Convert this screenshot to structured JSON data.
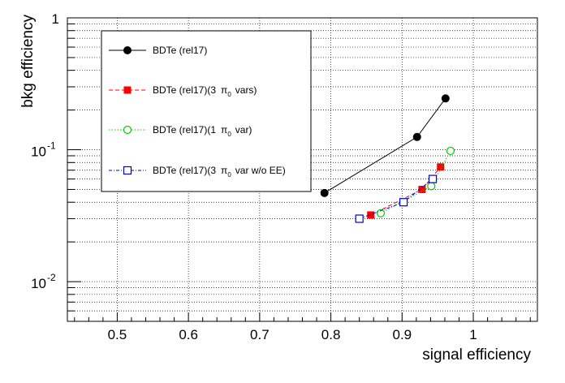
{
  "chart_data": {
    "type": "line",
    "xlabel": "signal efficiency",
    "ylabel": "bkg efficiency",
    "xlim": [
      0.43,
      1.09
    ],
    "ylim": [
      0.005,
      1
    ],
    "yscale": "log",
    "grid": true,
    "legend_position": "top-left",
    "x_ticks": [
      "0.5",
      "0.6",
      "0.7",
      "0.8",
      "0.9",
      "1"
    ],
    "y_ticks": [
      {
        "value": 0.01,
        "base": "10",
        "exp": "-2"
      },
      {
        "value": 0.1,
        "base": "10",
        "exp": "-1"
      },
      {
        "value": 1,
        "base": "1",
        "exp": ""
      }
    ],
    "series": [
      {
        "name": "BDTe (rel17)",
        "name_parts": {
          "main": "BDTe (rel17)",
          "pi": "",
          "sub": "",
          "tail": ""
        },
        "marker": "filled-circle",
        "color": "#000000",
        "line_style": "solid",
        "x": [
          0.791,
          0.921,
          0.961
        ],
        "y": [
          0.047,
          0.125,
          0.245
        ]
      },
      {
        "name": "BDTe (rel17)(3 π0 vars)",
        "name_parts": {
          "main": "BDTe (rel17)(3",
          "pi": "π",
          "sub": "0",
          "tail": "vars)"
        },
        "marker": "filled-square",
        "color": "#ff0000",
        "line_style": "dashed",
        "x": [
          0.856,
          0.928,
          0.954
        ],
        "y": [
          0.032,
          0.05,
          0.074
        ]
      },
      {
        "name": "BDTe (rel17)(1 π0 var)",
        "name_parts": {
          "main": "BDTe (rel17)(1",
          "pi": "π",
          "sub": "0",
          "tail": "var)"
        },
        "marker": "open-circle",
        "color": "#00cc00",
        "line_style": "dotted",
        "x": [
          0.87,
          0.941,
          0.968
        ],
        "y": [
          0.033,
          0.053,
          0.098
        ]
      },
      {
        "name": "BDTe (rel17)(3 π0 var w/o EE)",
        "name_parts": {
          "main": "BDTe (rel17)(3",
          "pi": "π",
          "sub": "0",
          "tail": "var w/o EE)"
        },
        "marker": "open-square",
        "color": "#0000cc",
        "line_style": "dashdot",
        "x": [
          0.84,
          0.902,
          0.943
        ],
        "y": [
          0.03,
          0.04,
          0.06
        ]
      }
    ]
  }
}
